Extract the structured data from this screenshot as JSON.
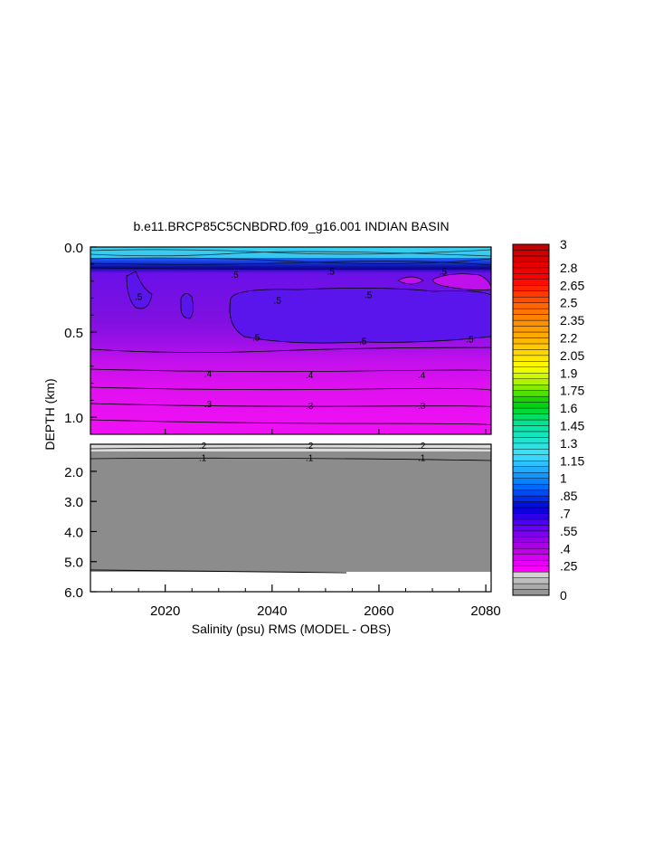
{
  "chart_data": {
    "type": "heatmap",
    "title": "b.e11.BRCP85C5CNBDRD.f09_g16.001 INDIAN BASIN",
    "xlabel": "Salinity (psu) RMS (MODEL - OBS)",
    "ylabel": "DEPTH (km)",
    "xlim": [
      2006,
      2081
    ],
    "upper_panel": {
      "ylim": [
        0.0,
        1.1
      ],
      "yticks": [
        0.0,
        0.5,
        1.0
      ],
      "ytick_labels": [
        "0.0",
        "0.5",
        "1.0"
      ]
    },
    "lower_panel": {
      "ylim": [
        1.1,
        6.0
      ],
      "yticks": [
        2.0,
        3.0,
        4.0,
        5.0,
        6.0
      ],
      "ytick_labels": [
        "2.0",
        "3.0",
        "4.0",
        "5.0",
        "6.0"
      ]
    },
    "xticks": [
      2020,
      2040,
      2060,
      2080
    ],
    "xtick_labels": [
      "2020",
      "2040",
      "2060",
      "2080"
    ],
    "contour_labels": [
      {
        "text": ".5",
        "x": 2033,
        "y": 0.16
      },
      {
        "text": ".5",
        "x": 2051,
        "y": 0.14
      },
      {
        "text": ".5",
        "x": 2058,
        "y": 0.28
      },
      {
        "text": ".5",
        "x": 2072,
        "y": 0.14
      },
      {
        "text": ".5",
        "x": 2041,
        "y": 0.31
      },
      {
        "text": ".5",
        "x": 2037,
        "y": 0.53
      },
      {
        "text": ".5",
        "x": 2057,
        "y": 0.55
      },
      {
        "text": ".5",
        "x": 2077,
        "y": 0.54
      },
      {
        "text": ".5",
        "x": 2015,
        "y": 0.29
      },
      {
        "text": ".4",
        "x": 2028,
        "y": 0.74
      },
      {
        "text": ".4",
        "x": 2047,
        "y": 0.75
      },
      {
        "text": ".4",
        "x": 2068,
        "y": 0.75
      },
      {
        "text": ".3",
        "x": 2028,
        "y": 0.92
      },
      {
        "text": ".3",
        "x": 2047,
        "y": 0.93
      },
      {
        "text": ".3",
        "x": 2068,
        "y": 0.93
      },
      {
        "text": ".2",
        "x": 2027,
        "y": 1.13
      },
      {
        "text": ".2",
        "x": 2047,
        "y": 1.13
      },
      {
        "text": ".2",
        "x": 2068,
        "y": 1.13
      },
      {
        "text": ".1",
        "x": 2027,
        "y": 1.53
      },
      {
        "text": ".1",
        "x": 2047,
        "y": 1.53
      },
      {
        "text": ".1",
        "x": 2068,
        "y": 1.53
      }
    ],
    "colorbar": {
      "min": 0,
      "max": 3,
      "tick_labels": [
        "3",
        "2.8",
        "2.65",
        "2.5",
        "2.35",
        "2.2",
        "2.05",
        "1.9",
        "1.75",
        "1.6",
        "1.45",
        "1.3",
        "1.15",
        "1",
        ".85",
        ".7",
        ".55",
        ".4",
        ".25",
        "0"
      ],
      "tick_values": [
        3,
        2.8,
        2.65,
        2.5,
        2.35,
        2.2,
        2.05,
        1.9,
        1.75,
        1.6,
        1.45,
        1.3,
        1.15,
        1,
        0.85,
        0.7,
        0.55,
        0.4,
        0.25,
        0
      ],
      "stops": [
        {
          "v": 0.0,
          "color": "#8c8c8c"
        },
        {
          "v": 0.1,
          "color": "#b4b4b4"
        },
        {
          "v": 0.2,
          "color": "#dcdcdc"
        },
        {
          "v": 0.22,
          "color": "#ff00ff"
        },
        {
          "v": 0.45,
          "color": "#a000e0"
        },
        {
          "v": 0.6,
          "color": "#5a00ff"
        },
        {
          "v": 0.75,
          "color": "#0000d8"
        },
        {
          "v": 0.95,
          "color": "#0078ff"
        },
        {
          "v": 1.2,
          "color": "#40e0ff"
        },
        {
          "v": 1.45,
          "color": "#00e8a0"
        },
        {
          "v": 1.65,
          "color": "#00d000"
        },
        {
          "v": 1.8,
          "color": "#a0f000"
        },
        {
          "v": 1.95,
          "color": "#ffff00"
        },
        {
          "v": 2.2,
          "color": "#ffb000"
        },
        {
          "v": 2.45,
          "color": "#ff7000"
        },
        {
          "v": 2.7,
          "color": "#ff0000"
        },
        {
          "v": 3.0,
          "color": "#c00000"
        }
      ]
    }
  }
}
